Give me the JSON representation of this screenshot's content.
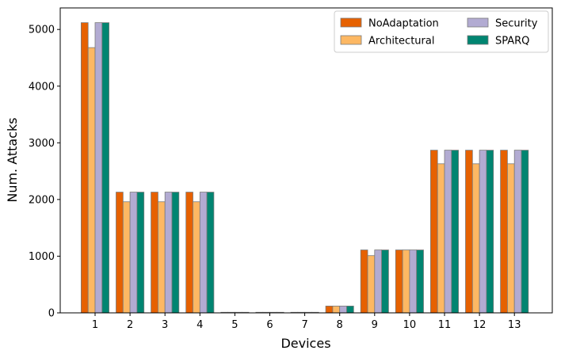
{
  "chart_data": {
    "type": "bar",
    "xlabel": "Devices",
    "ylabel": "Num. Attacks",
    "categories": [
      "1",
      "2",
      "3",
      "4",
      "5",
      "6",
      "7",
      "8",
      "9",
      "10",
      "11",
      "12",
      "13"
    ],
    "ylim": [
      0,
      5380
    ],
    "yticks": [
      0,
      1000,
      2000,
      3000,
      4000,
      5000
    ],
    "grid": false,
    "legend_position": "top-right",
    "series": [
      {
        "name": "NoAdaptation",
        "color": "#e66101",
        "values": [
          5120,
          2130,
          2130,
          2130,
          10,
          10,
          10,
          120,
          1110,
          1110,
          2870,
          2870,
          2870
        ]
      },
      {
        "name": "Architectural",
        "color": "#fdb863",
        "values": [
          4680,
          1960,
          1960,
          1960,
          10,
          10,
          10,
          120,
          1010,
          1110,
          2630,
          2630,
          2630
        ]
      },
      {
        "name": "Security",
        "color": "#b2abd2",
        "values": [
          5120,
          2130,
          2130,
          2130,
          10,
          10,
          10,
          120,
          1110,
          1110,
          2870,
          2870,
          2870
        ]
      },
      {
        "name": "SPARQ",
        "color": "#018571",
        "values": [
          5120,
          2130,
          2130,
          2130,
          10,
          10,
          10,
          120,
          1110,
          1110,
          2870,
          2870,
          2870
        ]
      }
    ]
  }
}
